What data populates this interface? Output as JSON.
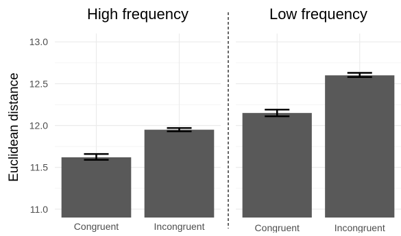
{
  "chart_data": {
    "type": "bar",
    "ylabel": "Euclidean distance",
    "xlabel": "",
    "ylim": [
      10.9,
      13.1
    ],
    "yticks": [
      11.0,
      11.5,
      12.0,
      12.5,
      13.0
    ],
    "ytick_labels": [
      "11.0",
      "11.5",
      "12.0",
      "12.5",
      "13.0"
    ],
    "grid": true,
    "bar_color": "#595959",
    "grid_color": "#ebebeb",
    "axis_text_color": "#4d4d4d",
    "panels": [
      {
        "title": "High frequency",
        "categories": [
          "Congruent",
          "Incongruent"
        ],
        "values": [
          11.62,
          11.95
        ],
        "error_low": [
          11.59,
          11.93
        ],
        "error_high": [
          11.66,
          11.97
        ]
      },
      {
        "title": "Low frequency",
        "categories": [
          "Congruent",
          "Incongruent"
        ],
        "values": [
          12.15,
          12.6
        ],
        "error_low": [
          12.11,
          12.58
        ],
        "error_high": [
          12.19,
          12.63
        ]
      }
    ]
  }
}
